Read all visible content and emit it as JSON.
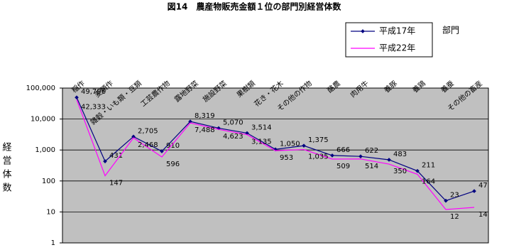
{
  "chart_data": {
    "type": "line",
    "title": "図14　農産物販売金額１位の部門別経営体数",
    "x_axis_title": "部門",
    "y_axis_title": "経営体数",
    "categories": [
      "稲作",
      "麦類作",
      "雑穀・いも類・豆類",
      "工芸農作物",
      "露地野菜",
      "施設野菜",
      "果樹類",
      "花き・花木",
      "その他の作物",
      "酪農",
      "肉用牛",
      "養豚",
      "養鶏",
      "養蚕",
      "その他の畜産"
    ],
    "series": [
      {
        "name": "平成17年",
        "color": "#000080",
        "marker": true,
        "values": [
          49796,
          431,
          2705,
          910,
          8319,
          5070,
          3514,
          1050,
          1375,
          666,
          622,
          483,
          211,
          23,
          47
        ],
        "value_labels": [
          "49,796",
          "431",
          "2,705",
          "910",
          "8,319",
          "5,070",
          "3,514",
          "1,050",
          "1,375",
          "666",
          "622",
          "483",
          "211",
          "23",
          "47"
        ]
      },
      {
        "name": "平成22年",
        "color": "#ff00ff",
        "marker": false,
        "values": [
          42333,
          147,
          2468,
          596,
          7488,
          4623,
          3135,
          953,
          1035,
          509,
          514,
          350,
          164,
          12,
          14
        ],
        "value_labels": [
          "42,333",
          "147",
          "2,468",
          "596",
          "7,488",
          "4,623",
          "3,135",
          "953",
          "1,035",
          "509",
          "514",
          "350",
          "164",
          "12",
          "14"
        ]
      }
    ],
    "log_scale": true,
    "grid": true,
    "plot_background": "#c0c0c0",
    "ylim": [
      1,
      100000
    ],
    "yticks": [
      1,
      10,
      100,
      {
        "value": 1000,
        "label": "1,000"
      },
      {
        "value": 10000,
        "label": "10,000"
      },
      {
        "value": 100000,
        "label": "100,000"
      }
    ]
  }
}
